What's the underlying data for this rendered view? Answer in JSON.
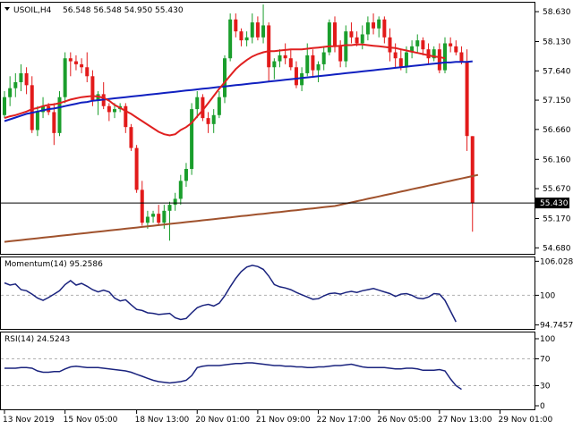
{
  "header": {
    "symbol": "USOIL,H4",
    "ohlc": "56.548 56.548 54.950 55.430"
  },
  "colors": {
    "bull": "#1a9e2c",
    "bear": "#e21a1a",
    "sma_fast": "#e02020",
    "sma_mid": "#1020c0",
    "sma_slow": "#a0522d",
    "indicator": "#1a237e",
    "grid": "#b0b0b0"
  },
  "chart_data": [
    {
      "type": "candlestick",
      "title": "USOIL,H4",
      "yticks": [
        54.68,
        55.17,
        55.67,
        56.16,
        56.66,
        57.15,
        57.64,
        58.13,
        58.63
      ],
      "ylim": [
        54.58,
        58.78
      ],
      "current_price": 55.43,
      "current_price_label": "55.430",
      "xticks": [
        "13 Nov 2019",
        "15 Nov 05:00",
        "18 Nov 13:00",
        "20 Nov 01:00",
        "21 Nov 09:00",
        "22 Nov 17:00",
        "26 Nov 05:00",
        "27 Nov 13:00",
        "29 Nov 01:00"
      ],
      "xtick_bar_index": [
        0,
        11,
        24,
        35,
        46,
        57,
        68,
        79,
        90
      ],
      "candles": [
        [
          56.9,
          57.3,
          56.85,
          57.2
        ],
        [
          57.2,
          57.55,
          57.05,
          57.35
        ],
        [
          57.35,
          57.6,
          57.2,
          57.45
        ],
        [
          57.45,
          57.75,
          57.3,
          57.6
        ],
        [
          57.6,
          57.7,
          57.25,
          57.4
        ],
        [
          57.4,
          57.55,
          56.6,
          56.65
        ],
        [
          56.65,
          57.05,
          56.55,
          56.95
        ],
        [
          56.95,
          57.2,
          56.85,
          57.05
        ],
        [
          57.05,
          57.1,
          56.9,
          56.95
        ],
        [
          56.95,
          57.1,
          56.4,
          56.6
        ],
        [
          56.6,
          57.3,
          56.55,
          57.2
        ],
        [
          57.2,
          57.95,
          57.1,
          57.85
        ],
        [
          57.85,
          57.95,
          57.55,
          57.8
        ],
        [
          57.8,
          57.9,
          57.65,
          57.75
        ],
        [
          57.75,
          57.85,
          57.6,
          57.7
        ],
        [
          57.7,
          57.95,
          57.45,
          57.55
        ],
        [
          57.55,
          57.65,
          57.05,
          57.15
        ],
        [
          57.15,
          57.3,
          56.9,
          57.25
        ],
        [
          57.25,
          57.45,
          57.0,
          57.05
        ],
        [
          57.05,
          57.1,
          56.8,
          56.95
        ],
        [
          56.95,
          57.1,
          56.85,
          57.0
        ],
        [
          57.0,
          57.1,
          56.95,
          57.05
        ],
        [
          57.05,
          57.1,
          56.6,
          56.7
        ],
        [
          56.7,
          56.75,
          56.3,
          56.35
        ],
        [
          56.35,
          56.4,
          55.6,
          55.65
        ],
        [
          55.65,
          55.8,
          55.05,
          55.1
        ],
        [
          55.1,
          55.3,
          55.0,
          55.2
        ],
        [
          55.2,
          55.3,
          55.1,
          55.25
        ],
        [
          55.25,
          55.4,
          55.05,
          55.1
        ],
        [
          55.1,
          55.4,
          55.0,
          55.3
        ],
        [
          55.3,
          55.45,
          54.8,
          55.4
        ],
        [
          55.4,
          55.6,
          55.3,
          55.5
        ],
        [
          55.5,
          55.9,
          55.4,
          55.8
        ],
        [
          55.8,
          56.1,
          55.7,
          56.0
        ],
        [
          56.0,
          57.1,
          55.9,
          57.0
        ],
        [
          57.0,
          57.3,
          56.85,
          57.2
        ],
        [
          57.2,
          57.25,
          56.8,
          56.85
        ],
        [
          56.85,
          56.95,
          56.6,
          56.75
        ],
        [
          56.75,
          57.0,
          56.6,
          56.9
        ],
        [
          56.9,
          57.3,
          56.85,
          57.2
        ],
        [
          57.2,
          57.9,
          57.1,
          57.85
        ],
        [
          57.85,
          58.6,
          57.8,
          58.5
        ],
        [
          58.5,
          58.6,
          58.2,
          58.3
        ],
        [
          58.3,
          58.35,
          58.05,
          58.15
        ],
        [
          58.15,
          58.3,
          58.05,
          58.2
        ],
        [
          58.2,
          58.6,
          58.1,
          58.45
        ],
        [
          58.45,
          58.55,
          58.15,
          58.2
        ],
        [
          58.2,
          58.75,
          58.1,
          58.4
        ],
        [
          58.4,
          58.45,
          57.45,
          57.7
        ],
        [
          57.7,
          57.85,
          57.5,
          57.8
        ],
        [
          57.8,
          58.0,
          57.7,
          57.9
        ],
        [
          57.9,
          58.1,
          57.75,
          57.85
        ],
        [
          57.85,
          58.0,
          57.65,
          57.7
        ],
        [
          57.7,
          57.8,
          57.35,
          57.4
        ],
        [
          57.4,
          57.7,
          57.3,
          57.6
        ],
        [
          57.6,
          58.1,
          57.55,
          57.9
        ],
        [
          57.9,
          58.0,
          57.55,
          57.65
        ],
        [
          57.65,
          57.8,
          57.45,
          57.75
        ],
        [
          57.75,
          58.05,
          57.65,
          57.95
        ],
        [
          57.95,
          58.5,
          57.9,
          58.45
        ],
        [
          58.45,
          58.55,
          57.95,
          58.05
        ],
        [
          58.05,
          58.15,
          57.7,
          57.8
        ],
        [
          57.8,
          58.4,
          57.7,
          58.3
        ],
        [
          58.3,
          58.45,
          58.1,
          58.2
        ],
        [
          58.2,
          58.3,
          58.05,
          58.1
        ],
        [
          58.1,
          58.4,
          58.0,
          58.25
        ],
        [
          58.25,
          58.55,
          58.15,
          58.45
        ],
        [
          58.45,
          58.6,
          58.25,
          58.35
        ],
        [
          58.35,
          58.55,
          58.2,
          58.5
        ],
        [
          58.5,
          58.55,
          58.1,
          58.2
        ],
        [
          58.2,
          58.35,
          57.8,
          57.95
        ],
        [
          57.95,
          58.1,
          57.7,
          57.85
        ],
        [
          57.85,
          58.0,
          57.65,
          57.7
        ],
        [
          57.7,
          58.05,
          57.6,
          57.95
        ],
        [
          57.95,
          58.15,
          57.85,
          58.05
        ],
        [
          58.05,
          58.25,
          57.95,
          58.15
        ],
        [
          58.15,
          58.2,
          57.9,
          58.0
        ],
        [
          58.0,
          58.1,
          57.75,
          57.85
        ],
        [
          57.85,
          58.05,
          57.8,
          58.0
        ],
        [
          58.0,
          58.1,
          57.6,
          57.65
        ],
        [
          57.65,
          58.2,
          57.6,
          58.1
        ],
        [
          58.1,
          58.2,
          57.95,
          58.05
        ],
        [
          58.05,
          58.15,
          57.9,
          57.95
        ],
        [
          57.95,
          58.05,
          57.75,
          57.8
        ],
        [
          57.8,
          58.0,
          56.3,
          56.55
        ],
        [
          56.548,
          56.548,
          54.95,
          55.43
        ]
      ],
      "sma_fast": [
        56.85,
        56.88,
        56.9,
        56.93,
        56.96,
        57.0,
        57.02,
        57.05,
        57.07,
        57.08,
        57.1,
        57.13,
        57.16,
        57.18,
        57.2,
        57.21,
        57.22,
        57.21,
        57.19,
        57.14,
        57.07,
        57.02,
        56.97,
        56.92,
        56.86,
        56.8,
        56.74,
        56.68,
        56.62,
        56.58,
        56.56,
        56.58,
        56.65,
        56.7,
        56.77,
        56.88,
        56.98,
        57.1,
        57.22,
        57.34,
        57.45,
        57.56,
        57.67,
        57.75,
        57.82,
        57.88,
        57.92,
        57.95,
        57.97,
        57.97,
        57.98,
        57.99,
        58.0,
        58.0,
        58.0,
        58.01,
        58.02,
        58.03,
        58.04,
        58.05,
        58.05,
        58.06,
        58.07,
        58.07,
        58.08,
        58.08,
        58.07,
        58.06,
        58.05,
        58.04,
        58.03,
        58.02,
        58.0,
        57.98,
        57.96,
        57.94,
        57.92,
        57.9,
        57.88,
        57.87,
        57.85
      ],
      "sma_mid": [
        56.8,
        56.83,
        56.86,
        56.89,
        56.92,
        56.94,
        56.96,
        56.98,
        57.0,
        57.01,
        57.03,
        57.05,
        57.07,
        57.09,
        57.11,
        57.12,
        57.14,
        57.15,
        57.16,
        57.17,
        57.18,
        57.19,
        57.2,
        57.21,
        57.22,
        57.23,
        57.24,
        57.25,
        57.26,
        57.27,
        57.28,
        57.29,
        57.3,
        57.31,
        57.32,
        57.33,
        57.34,
        57.35,
        57.36,
        57.37,
        57.38,
        57.39,
        57.4,
        57.41,
        57.42,
        57.43,
        57.44,
        57.45,
        57.46,
        57.47,
        57.48,
        57.49,
        57.5,
        57.51,
        57.52,
        57.53,
        57.54,
        57.55,
        57.56,
        57.57,
        57.58,
        57.59,
        57.6,
        57.61,
        57.62,
        57.63,
        57.64,
        57.65,
        57.66,
        57.67,
        57.68,
        57.69,
        57.7,
        57.71,
        57.72,
        57.73,
        57.74,
        57.75,
        57.76,
        57.77,
        57.78,
        57.78,
        57.79,
        57.79,
        57.79,
        57.8
      ],
      "sma_slow": [
        54.78,
        54.79,
        54.8,
        54.81,
        54.82,
        54.83,
        54.84,
        54.85,
        54.86,
        54.87,
        54.88,
        54.89,
        54.9,
        54.91,
        54.92,
        54.93,
        54.94,
        54.95,
        54.96,
        54.97,
        54.98,
        54.99,
        55.0,
        55.01,
        55.02,
        55.03,
        55.04,
        55.05,
        55.06,
        55.07,
        55.08,
        55.09,
        55.1,
        55.11,
        55.12,
        55.13,
        55.14,
        55.15,
        55.16,
        55.17,
        55.18,
        55.19,
        55.2,
        55.21,
        55.22,
        55.23,
        55.24,
        55.25,
        55.26,
        55.27,
        55.28,
        55.29,
        55.3,
        55.31,
        55.32,
        55.33,
        55.34,
        55.35,
        55.36,
        55.37,
        55.38,
        55.4,
        55.42,
        55.44,
        55.46,
        55.48,
        55.5,
        55.52,
        55.54,
        55.56,
        55.58,
        55.6,
        55.62,
        55.64,
        55.66,
        55.68,
        55.7,
        55.72,
        55.74,
        55.76,
        55.78,
        55.8,
        55.82,
        55.84,
        55.86,
        55.88,
        55.9
      ]
    },
    {
      "type": "line",
      "title": "Momentum(14) 95.2586",
      "yticks": [
        106.0284,
        100,
        94.7457
      ],
      "ytick_labels": [
        "106.0284",
        "100",
        "94.7457"
      ],
      "ylim": [
        94.2,
        106.4
      ],
      "reference_level": 100,
      "values": [
        102.2,
        101.8,
        102.0,
        101.0,
        100.8,
        100.2,
        99.5,
        99.1,
        99.6,
        100.2,
        100.8,
        101.9,
        102.6,
        101.8,
        102.1,
        101.6,
        101.0,
        100.6,
        100.9,
        100.6,
        99.5,
        99.0,
        99.2,
        98.3,
        97.5,
        97.3,
        96.9,
        96.8,
        96.6,
        96.7,
        96.8,
        96.0,
        95.7,
        95.9,
        96.9,
        97.8,
        98.2,
        98.4,
        98.1,
        98.6,
        99.9,
        101.5,
        103.0,
        104.2,
        105.0,
        105.3,
        105.1,
        104.6,
        103.4,
        101.9,
        101.5,
        101.3,
        101.0,
        100.5,
        100.1,
        99.7,
        99.3,
        99.4,
        99.9,
        100.3,
        100.4,
        100.2,
        100.5,
        100.7,
        100.5,
        100.8,
        101.0,
        101.2,
        100.9,
        100.6,
        100.3,
        99.8,
        100.2,
        100.3,
        100.0,
        99.5,
        99.4,
        99.7,
        100.3,
        100.2,
        99.1,
        97.2,
        95.3
      ]
    },
    {
      "type": "line",
      "title": "RSI(14) 24.5243",
      "yticks": [
        100,
        70,
        30,
        0
      ],
      "ytick_labels": [
        "100",
        "70",
        "30",
        "0"
      ],
      "ylim": [
        0,
        100
      ],
      "levels": [
        70,
        30
      ],
      "values": [
        56,
        56,
        56,
        57,
        57,
        56,
        52,
        50,
        50,
        51,
        51,
        55,
        58,
        59,
        58,
        57,
        57,
        57,
        56,
        55,
        54,
        53,
        52,
        50,
        47,
        44,
        41,
        38,
        36,
        35,
        34,
        35,
        36,
        38,
        45,
        57,
        59,
        60,
        60,
        60,
        61,
        62,
        63,
        63,
        64,
        64,
        63,
        62,
        61,
        60,
        60,
        59,
        59,
        58,
        58,
        57,
        57,
        58,
        58,
        59,
        60,
        60,
        61,
        62,
        60,
        58,
        57,
        57,
        57,
        57,
        56,
        55,
        55,
        56,
        56,
        55,
        53,
        53,
        53,
        54,
        52,
        40,
        30,
        24.5
      ]
    }
  ]
}
